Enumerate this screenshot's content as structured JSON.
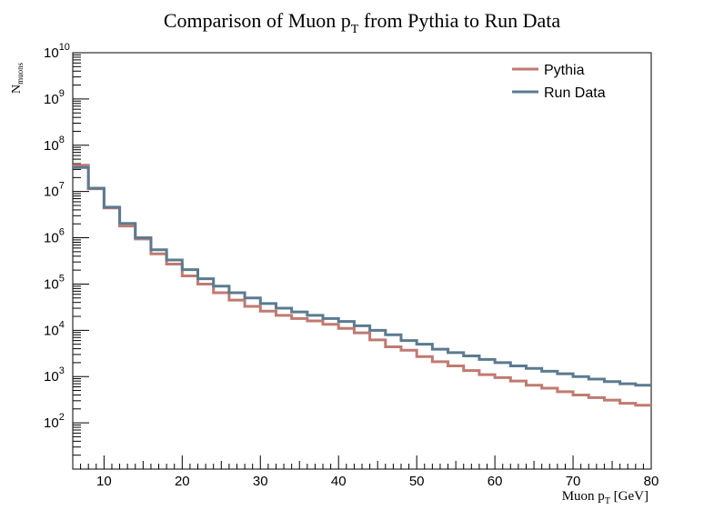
{
  "chart_data": {
    "type": "line",
    "title_main": "Comparison of Muon p",
    "title_sub": "T",
    "title_rest": " from Pythia to Run Data",
    "xlabel_main": "Muon p",
    "xlabel_sub": "T",
    "xlabel_rest": " [GeV]",
    "ylabel_main": "N",
    "ylabel_sub": "muons",
    "x_range": [
      6,
      80
    ],
    "y_range": [
      10,
      10000000000
    ],
    "y_scale": "log",
    "x_ticks": [
      10,
      20,
      30,
      40,
      50,
      60,
      70,
      80
    ],
    "x_tick_labels": [
      "10",
      "20",
      "30",
      "40",
      "50",
      "60",
      "70",
      "80"
    ],
    "y_tick_exponents": [
      2,
      3,
      4,
      5,
      6,
      7,
      8,
      9,
      10
    ],
    "y_tick_base": "10",
    "y_tick_exponent_labels": [
      "2",
      "3",
      "4",
      "5",
      "6",
      "7",
      "8",
      "9",
      "10"
    ],
    "bin_edges": [
      6,
      8,
      10,
      12,
      14,
      16,
      18,
      20,
      22,
      24,
      26,
      28,
      30,
      32,
      34,
      36,
      38,
      40,
      42,
      44,
      46,
      48,
      50,
      52,
      54,
      56,
      58,
      60,
      62,
      64,
      66,
      68,
      70,
      72,
      74,
      76,
      78,
      80
    ],
    "legend_position": "top-right",
    "series": [
      {
        "name": "Pythia",
        "color": "#c07a72",
        "values": [
          37000000,
          11500000,
          4400000,
          1800000,
          940000,
          450000,
          270000,
          150000,
          100000,
          65000,
          45000,
          33000,
          26000,
          21000,
          18000,
          16000,
          13500,
          11000,
          8800,
          6200,
          4400,
          3700,
          2700,
          2100,
          1700,
          1350,
          1100,
          950,
          800,
          650,
          560,
          470,
          400,
          350,
          310,
          265,
          240
        ]
      },
      {
        "name": "Run Data",
        "color": "#5b7b8f",
        "values": [
          33000000,
          11800000,
          4600000,
          2050000,
          1000000,
          550000,
          330000,
          205000,
          130000,
          90000,
          65000,
          50000,
          38000,
          30000,
          25000,
          21000,
          18000,
          15500,
          12500,
          10000,
          8000,
          6000,
          5000,
          3900,
          3300,
          2800,
          2350,
          2000,
          1700,
          1500,
          1300,
          1150,
          1000,
          880,
          780,
          700,
          650
        ]
      }
    ]
  }
}
